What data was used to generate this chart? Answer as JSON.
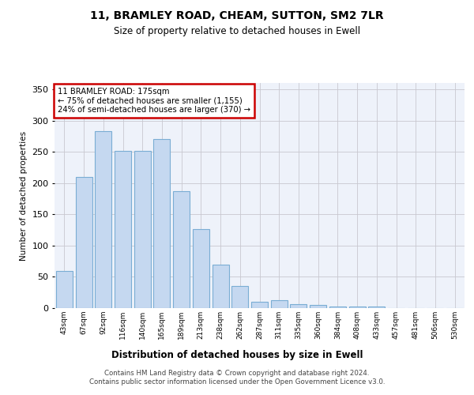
{
  "title": "11, BRAMLEY ROAD, CHEAM, SUTTON, SM2 7LR",
  "subtitle": "Size of property relative to detached houses in Ewell",
  "xlabel": "Distribution of detached houses by size in Ewell",
  "ylabel": "Number of detached properties",
  "categories": [
    "43sqm",
    "67sqm",
    "92sqm",
    "116sqm",
    "140sqm",
    "165sqm",
    "189sqm",
    "213sqm",
    "238sqm",
    "262sqm",
    "287sqm",
    "311sqm",
    "335sqm",
    "360sqm",
    "384sqm",
    "408sqm",
    "433sqm",
    "457sqm",
    "481sqm",
    "506sqm",
    "530sqm"
  ],
  "values": [
    60,
    210,
    283,
    252,
    252,
    270,
    187,
    126,
    69,
    35,
    10,
    13,
    6,
    5,
    3,
    2,
    3,
    0,
    0,
    0,
    0
  ],
  "bar_color": "#c5d8f0",
  "bar_edge_color": "#7aadd4",
  "annotation_text": "11 BRAMLEY ROAD: 175sqm\n← 75% of detached houses are smaller (1,155)\n24% of semi-detached houses are larger (370) →",
  "annotation_box_color": "#ffffff",
  "annotation_box_edge": "#cc0000",
  "footer": "Contains HM Land Registry data © Crown copyright and database right 2024.\nContains public sector information licensed under the Open Government Licence v3.0.",
  "ylim": [
    0,
    360
  ],
  "yticks": [
    0,
    50,
    100,
    150,
    200,
    250,
    300,
    350
  ],
  "bg_color": "#eef2fa",
  "grid_color": "#c8c8d0"
}
